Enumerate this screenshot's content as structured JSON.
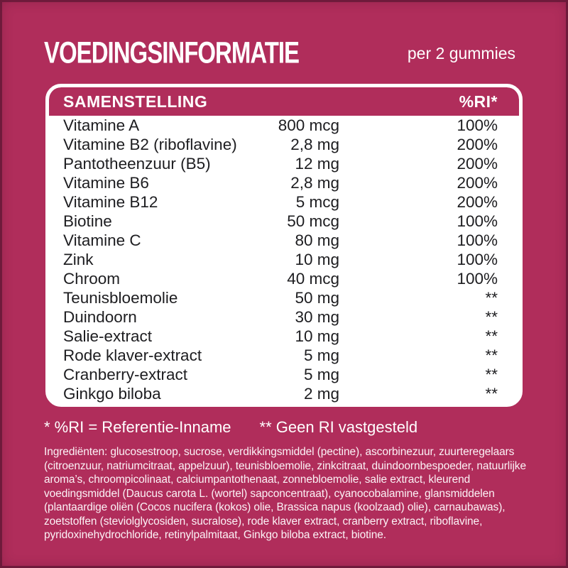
{
  "page": {
    "title": "VOEDINGSINFORMATIE",
    "serving": "per 2 gummies",
    "background_color": "#B02D5B",
    "card_color": "#FFFFFF",
    "text_color": "#1D1D20"
  },
  "table": {
    "header": {
      "composition_label": "SAMENSTELLING",
      "ri_label": "%RI*"
    },
    "rows": [
      {
        "name": "Vitamine A",
        "amount": "800 mcg",
        "ri": "100%"
      },
      {
        "name": "Vitamine B2 (riboflavine)",
        "amount": "2,8 mg",
        "ri": "200%"
      },
      {
        "name": "Pantotheenzuur (B5)",
        "amount": "12 mg",
        "ri": "200%"
      },
      {
        "name": "Vitamine B6",
        "amount": "2,8 mg",
        "ri": "200%"
      },
      {
        "name": "Vitamine B12",
        "amount": "5 mcg",
        "ri": "200%"
      },
      {
        "name": "Biotine",
        "amount": "50 mcg",
        "ri": "100%"
      },
      {
        "name": "Vitamine C",
        "amount": "80 mg",
        "ri": "100%"
      },
      {
        "name": "Zink",
        "amount": "10 mg",
        "ri": "100%"
      },
      {
        "name": "Chroom",
        "amount": "40 mcg",
        "ri": "100%"
      },
      {
        "name": "Teunisbloemolie",
        "amount": "50 mg",
        "ri": "**"
      },
      {
        "name": "Duindoorn",
        "amount": "30 mg",
        "ri": "**"
      },
      {
        "name": "Salie-extract",
        "amount": "10 mg",
        "ri": "**"
      },
      {
        "name": "Rode klaver-extract",
        "amount": "5 mg",
        "ri": "**"
      },
      {
        "name": "Cranberry-extract",
        "amount": "5 mg",
        "ri": "**"
      },
      {
        "name": "Ginkgo biloba",
        "amount": "2 mg",
        "ri": "**"
      }
    ]
  },
  "footnotes": {
    "ri_definition": "* %RI = Referentie-Inname",
    "no_ri": "** Geen RI vastgesteld"
  },
  "ingredients": {
    "text": "Ingrediënten: glucosestroop, sucrose, verdikkingsmiddel (pectine), ascorbinezuur, zuurteregelaars (citroenzuur, natriumcitraat, appelzuur), teunisbloemolie, zinkcitraat, duindoornbespoeder, natuurlijke aroma’s, chroompicolinaat, calciumpantothenaat, zonnebloemolie, salie extract, kleurend voedingsmiddel (Daucus carota L. (wortel) sapconcentraat), cyanocobalamine, glansmiddelen (plantaardige oliën (Cocos nucifera (kokos) olie, Brassica napus (koolzaad) olie), carnaubawas), zoetstoffen (steviolglycosiden, sucralose), rode klaver extract, cranberry extract, riboflavine, pyridoxinehydrochloride, retinylpalmitaat, Ginkgo biloba extract, biotine."
  }
}
